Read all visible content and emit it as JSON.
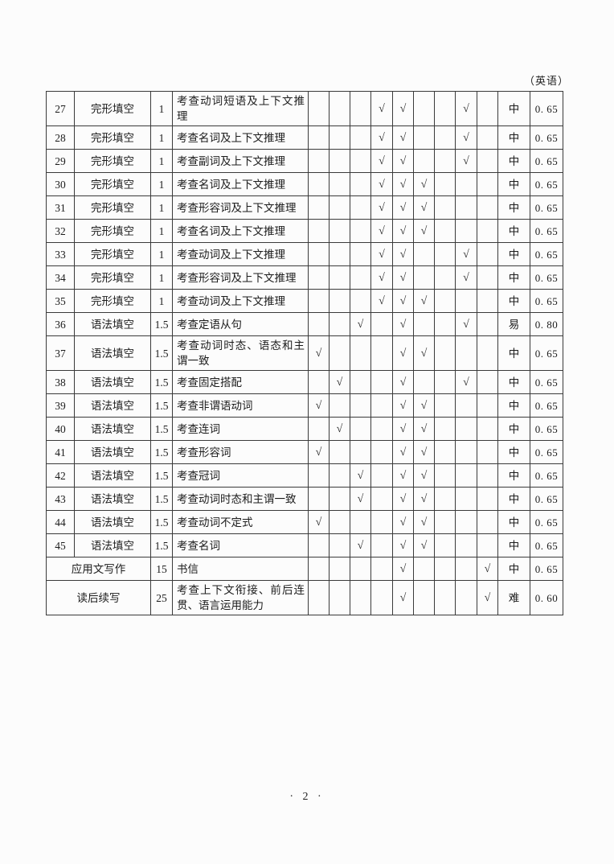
{
  "page": {
    "subject_label": "（英语）",
    "page_number": "· 2 ·"
  },
  "table": {
    "check_glyph": "√",
    "check_column_count": 9,
    "rows": [
      {
        "number": "27",
        "type": "完形填空",
        "score": "1",
        "content": "考查动词短语及上下文推理",
        "checks": [
          4,
          5,
          8
        ],
        "difficulty": "中",
        "coefficient": "0. 65"
      },
      {
        "number": "28",
        "type": "完形填空",
        "score": "1",
        "content": "考查名词及上下文推理",
        "checks": [
          4,
          5,
          8
        ],
        "difficulty": "中",
        "coefficient": "0. 65"
      },
      {
        "number": "29",
        "type": "完形填空",
        "score": "1",
        "content": "考查副词及上下文推理",
        "checks": [
          4,
          5,
          8
        ],
        "difficulty": "中",
        "coefficient": "0. 65"
      },
      {
        "number": "30",
        "type": "完形填空",
        "score": "1",
        "content": "考查名词及上下文推理",
        "checks": [
          4,
          5,
          6
        ],
        "difficulty": "中",
        "coefficient": "0. 65"
      },
      {
        "number": "31",
        "type": "完形填空",
        "score": "1",
        "content": "考查形容词及上下文推理",
        "checks": [
          4,
          5,
          6
        ],
        "difficulty": "中",
        "coefficient": "0. 65"
      },
      {
        "number": "32",
        "type": "完形填空",
        "score": "1",
        "content": "考查名词及上下文推理",
        "checks": [
          4,
          5,
          6
        ],
        "difficulty": "中",
        "coefficient": "0. 65"
      },
      {
        "number": "33",
        "type": "完形填空",
        "score": "1",
        "content": "考查动词及上下文推理",
        "checks": [
          4,
          5,
          8
        ],
        "difficulty": "中",
        "coefficient": "0. 65"
      },
      {
        "number": "34",
        "type": "完形填空",
        "score": "1",
        "content": "考查形容词及上下文推理",
        "checks": [
          4,
          5,
          8
        ],
        "difficulty": "中",
        "coefficient": "0. 65"
      },
      {
        "number": "35",
        "type": "完形填空",
        "score": "1",
        "content": "考查动词及上下文推理",
        "checks": [
          4,
          5,
          6
        ],
        "difficulty": "中",
        "coefficient": "0. 65"
      },
      {
        "number": "36",
        "type": "语法填空",
        "score": "1.5",
        "content": "考查定语从句",
        "checks": [
          3,
          5,
          8
        ],
        "difficulty": "易",
        "coefficient": "0. 80"
      },
      {
        "number": "37",
        "type": "语法填空",
        "score": "1.5",
        "content": "考查动词时态、语态和主谓一致",
        "checks": [
          1,
          5,
          6
        ],
        "difficulty": "中",
        "coefficient": "0. 65"
      },
      {
        "number": "38",
        "type": "语法填空",
        "score": "1.5",
        "content": "考查固定搭配",
        "checks": [
          2,
          5,
          8
        ],
        "difficulty": "中",
        "coefficient": "0. 65"
      },
      {
        "number": "39",
        "type": "语法填空",
        "score": "1.5",
        "content": "考查非谓语动词",
        "checks": [
          1,
          5,
          6
        ],
        "difficulty": "中",
        "coefficient": "0. 65"
      },
      {
        "number": "40",
        "type": "语法填空",
        "score": "1.5",
        "content": "考查连词",
        "checks": [
          2,
          5,
          6
        ],
        "difficulty": "中",
        "coefficient": "0. 65"
      },
      {
        "number": "41",
        "type": "语法填空",
        "score": "1.5",
        "content": "考查形容词",
        "checks": [
          1,
          5,
          6
        ],
        "difficulty": "中",
        "coefficient": "0. 65"
      },
      {
        "number": "42",
        "type": "语法填空",
        "score": "1.5",
        "content": "考查冠词",
        "checks": [
          3,
          5,
          6
        ],
        "difficulty": "中",
        "coefficient": "0. 65"
      },
      {
        "number": "43",
        "type": "语法填空",
        "score": "1.5",
        "content": "考查动词时态和主谓一致",
        "checks": [
          3,
          5,
          6
        ],
        "difficulty": "中",
        "coefficient": "0. 65"
      },
      {
        "number": "44",
        "type": "语法填空",
        "score": "1.5",
        "content": "考查动词不定式",
        "checks": [
          1,
          5,
          6
        ],
        "difficulty": "中",
        "coefficient": "0. 65"
      },
      {
        "number": "45",
        "type": "语法填空",
        "score": "1.5",
        "content": "考查名词",
        "checks": [
          3,
          5,
          6
        ],
        "difficulty": "中",
        "coefficient": "0. 65"
      },
      {
        "number": null,
        "type": "应用文写作",
        "score": "15",
        "content": "书信",
        "checks": [
          5,
          9
        ],
        "difficulty": "中",
        "coefficient": "0. 65"
      },
      {
        "number": null,
        "type": "读后续写",
        "score": "25",
        "content": "考查上下文衔接、前后连贯、语言运用能力",
        "checks": [
          5,
          9
        ],
        "difficulty": "难",
        "coefficient": "0. 60"
      }
    ]
  }
}
